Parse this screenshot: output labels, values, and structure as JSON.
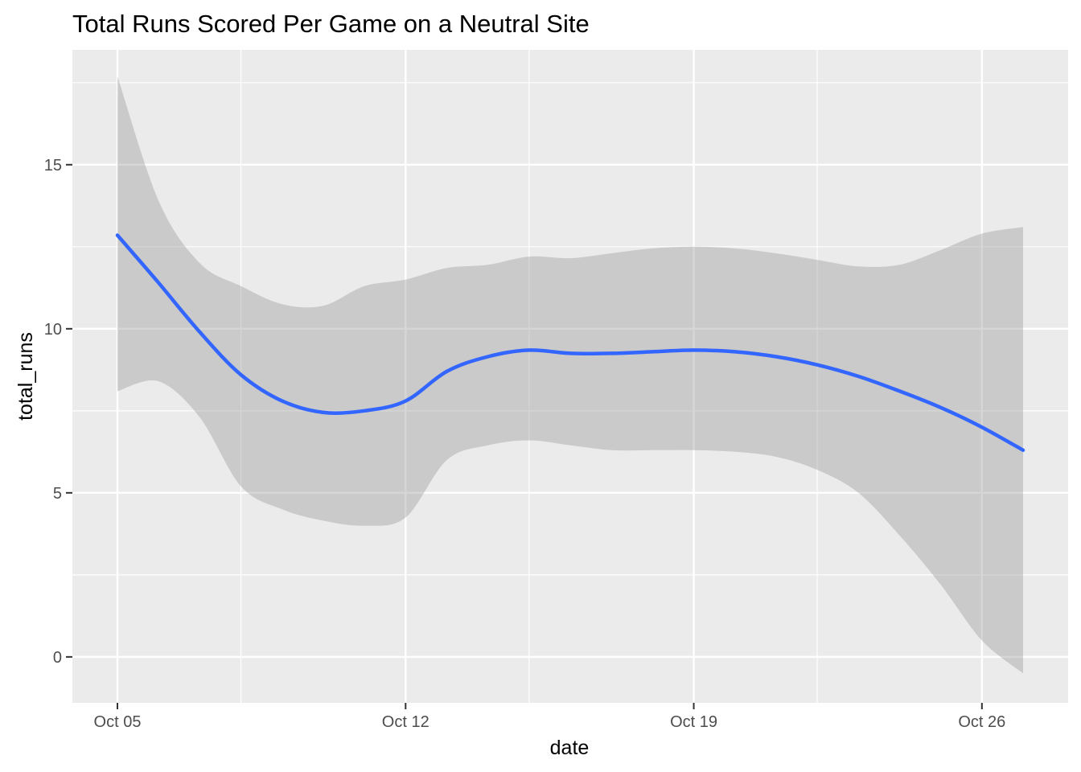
{
  "chart_data": {
    "type": "line",
    "title": "Total Runs Scored Per Game on a Neutral Site",
    "xlabel": "date",
    "ylabel": "total_runs",
    "x_type": "date",
    "xlim": [
      "2023-10-05",
      "2023-10-27"
    ],
    "ylim": [
      -1.4,
      18.5
    ],
    "x_ticks": [
      {
        "date": "2023-10-05",
        "label": "Oct 05"
      },
      {
        "date": "2023-10-12",
        "label": "Oct 12"
      },
      {
        "date": "2023-10-19",
        "label": "Oct 19"
      },
      {
        "date": "2023-10-26",
        "label": "Oct 26"
      }
    ],
    "x_minor_ticks": [
      "2023-10-08",
      "2023-10-15",
      "2023-10-22"
    ],
    "y_ticks": [
      0,
      5,
      10,
      15
    ],
    "y_minor_ticks": [
      2.5,
      7.5,
      12.5,
      17.5
    ],
    "grid": true,
    "legend": "none",
    "series": [
      {
        "color": "#3366ff",
        "band_color": "#999999",
        "x": [
          "2023-10-05",
          "2023-10-06",
          "2023-10-07",
          "2023-10-08",
          "2023-10-09",
          "2023-10-10",
          "2023-10-11",
          "2023-10-12",
          "2023-10-13",
          "2023-10-14",
          "2023-10-15",
          "2023-10-16",
          "2023-10-17",
          "2023-10-18",
          "2023-10-19",
          "2023-10-20",
          "2023-10-21",
          "2023-10-22",
          "2023-10-23",
          "2023-10-24",
          "2023-10-25",
          "2023-10-26",
          "2023-10-27"
        ],
        "y": [
          12.85,
          11.4,
          9.9,
          8.6,
          7.8,
          7.45,
          7.5,
          7.8,
          8.7,
          9.15,
          9.35,
          9.25,
          9.25,
          9.3,
          9.35,
          9.3,
          9.15,
          8.9,
          8.55,
          8.1,
          7.6,
          7.0,
          6.3
        ],
        "lower": [
          8.1,
          8.4,
          7.3,
          5.2,
          4.5,
          4.15,
          4.0,
          4.25,
          6.0,
          6.45,
          6.6,
          6.45,
          6.3,
          6.3,
          6.3,
          6.25,
          6.1,
          5.7,
          5.0,
          3.7,
          2.2,
          0.5,
          -0.5
        ],
        "upper": [
          17.7,
          13.9,
          12.0,
          11.3,
          10.75,
          10.7,
          11.3,
          11.5,
          11.85,
          11.95,
          12.2,
          12.15,
          12.3,
          12.45,
          12.5,
          12.45,
          12.3,
          12.1,
          11.9,
          11.95,
          12.4,
          12.9,
          13.1
        ]
      }
    ]
  }
}
